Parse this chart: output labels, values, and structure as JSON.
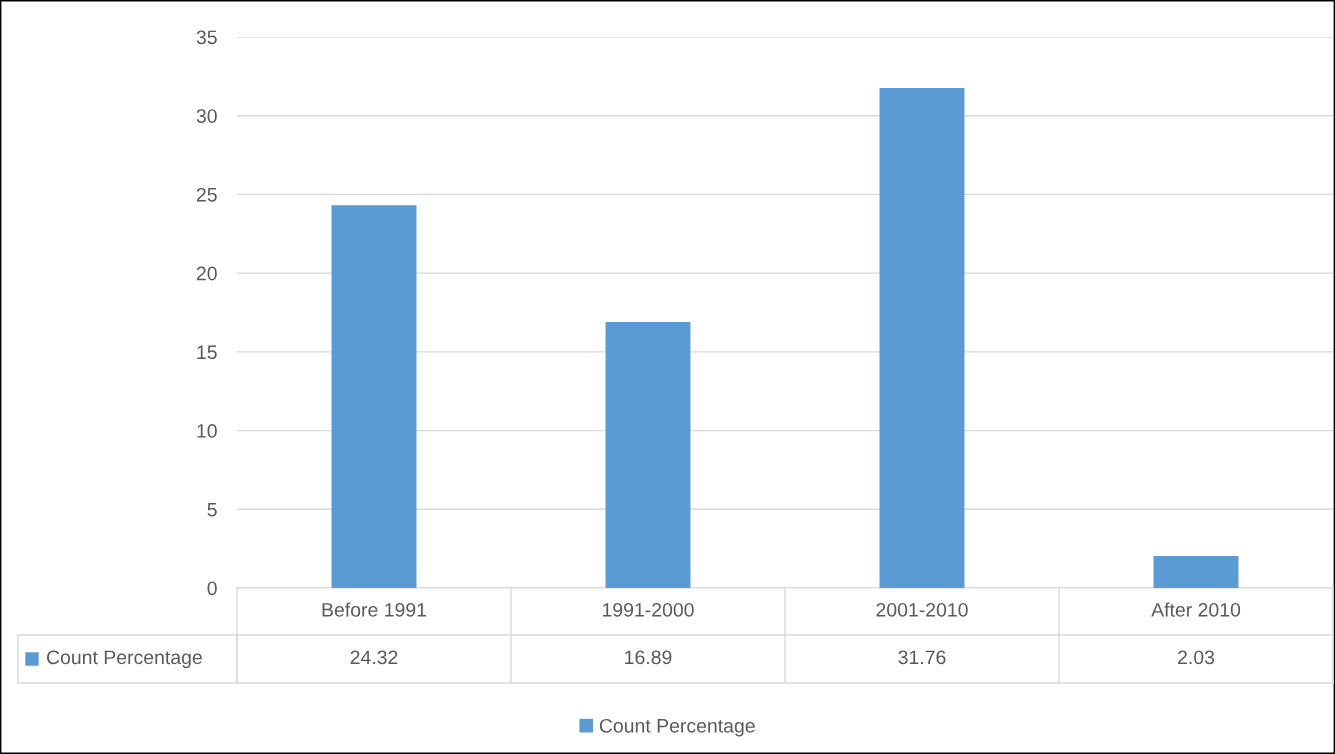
{
  "chart_data": {
    "type": "bar",
    "categories": [
      "Before 1991",
      "1991-2000",
      "2001-2010",
      "After 2010"
    ],
    "series": [
      {
        "name": "Count Percentage",
        "color": "#5b9bd5",
        "values": [
          24.32,
          16.89,
          31.76,
          2.03
        ]
      }
    ],
    "ylim": [
      0,
      35
    ],
    "yticks": [
      0,
      5,
      10,
      15,
      20,
      25,
      30,
      35
    ],
    "grid": "y",
    "data_labels": true,
    "legend": "bottom"
  }
}
